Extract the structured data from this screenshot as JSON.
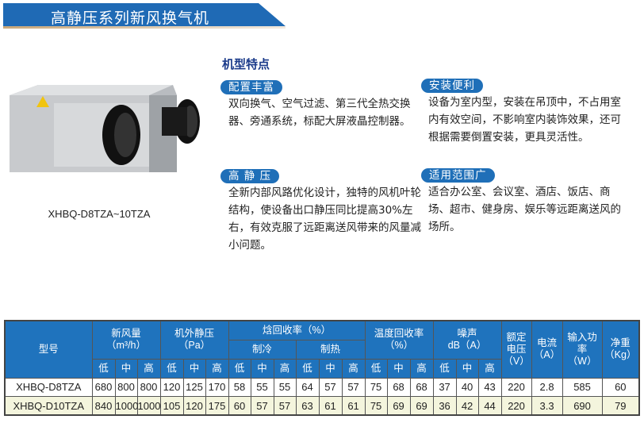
{
  "banner": {
    "title": "高静压系列新风换气机",
    "color": "#1f6ab5"
  },
  "product": {
    "caption": "XHBQ-D8TZA~10TZA"
  },
  "features": {
    "title": "机型特点",
    "items": [
      {
        "label": "配置丰富",
        "text": "双向换气、空气过滤、第三代全热交换器、旁通系统，标配大屏液晶控制器。"
      },
      {
        "label": "高 静 压",
        "text": "全新内部风路优化设计，独特的风机叶轮结构，使设备出口静压同比提高30%左右，有效克服了远距离送风带来的风量减小问题。"
      },
      {
        "label": "安装便利",
        "text": "设备为室内型，安装在吊顶中，不占用室内有效空间，不影响室内装饰效果，还可根据需要倒置安装，更具灵活性。"
      },
      {
        "label": "适用范围广",
        "text": "适合办公室、会议室、酒店、饭店、商场、超市、健身房、娱乐等远距离送风的场所。"
      }
    ]
  },
  "table": {
    "headers": {
      "model": "型号",
      "airflow": "新风量",
      "airflow_unit": "（m³/h）",
      "pressure": "机外静压",
      "pressure_unit": "（Pa）",
      "enthalpy": "焓回收率（%）",
      "cooling": "制冷",
      "heating": "制热",
      "temp": "温度回收率",
      "temp_unit": "（%）",
      "noise": "噪声",
      "noise_unit": "dB（A）",
      "voltage": "额定电压",
      "voltage_unit": "（V）",
      "current": "电流",
      "current_unit": "（A）",
      "power": "输入功率",
      "power_unit": "（W）",
      "weight": "净重",
      "weight_unit": "（Kg）",
      "levels": [
        "低",
        "中",
        "高",
        "低",
        "中",
        "高",
        "低",
        "中",
        "高",
        "低",
        "中",
        "高",
        "低",
        "中",
        "高",
        "低",
        "中",
        "高"
      ]
    },
    "rows": [
      [
        "XHBQ-D8TZA",
        "680",
        "800",
        "800",
        "120",
        "125",
        "170",
        "58",
        "55",
        "55",
        "64",
        "57",
        "57",
        "75",
        "68",
        "68",
        "37",
        "40",
        "43",
        "220",
        "2.8",
        "585",
        "60"
      ],
      [
        "XHBQ-D10TZA",
        "840",
        "1000",
        "1000",
        "105",
        "120",
        "175",
        "60",
        "57",
        "57",
        "63",
        "61",
        "61",
        "75",
        "69",
        "69",
        "36",
        "42",
        "44",
        "220",
        "3.3",
        "690",
        "79"
      ]
    ]
  }
}
